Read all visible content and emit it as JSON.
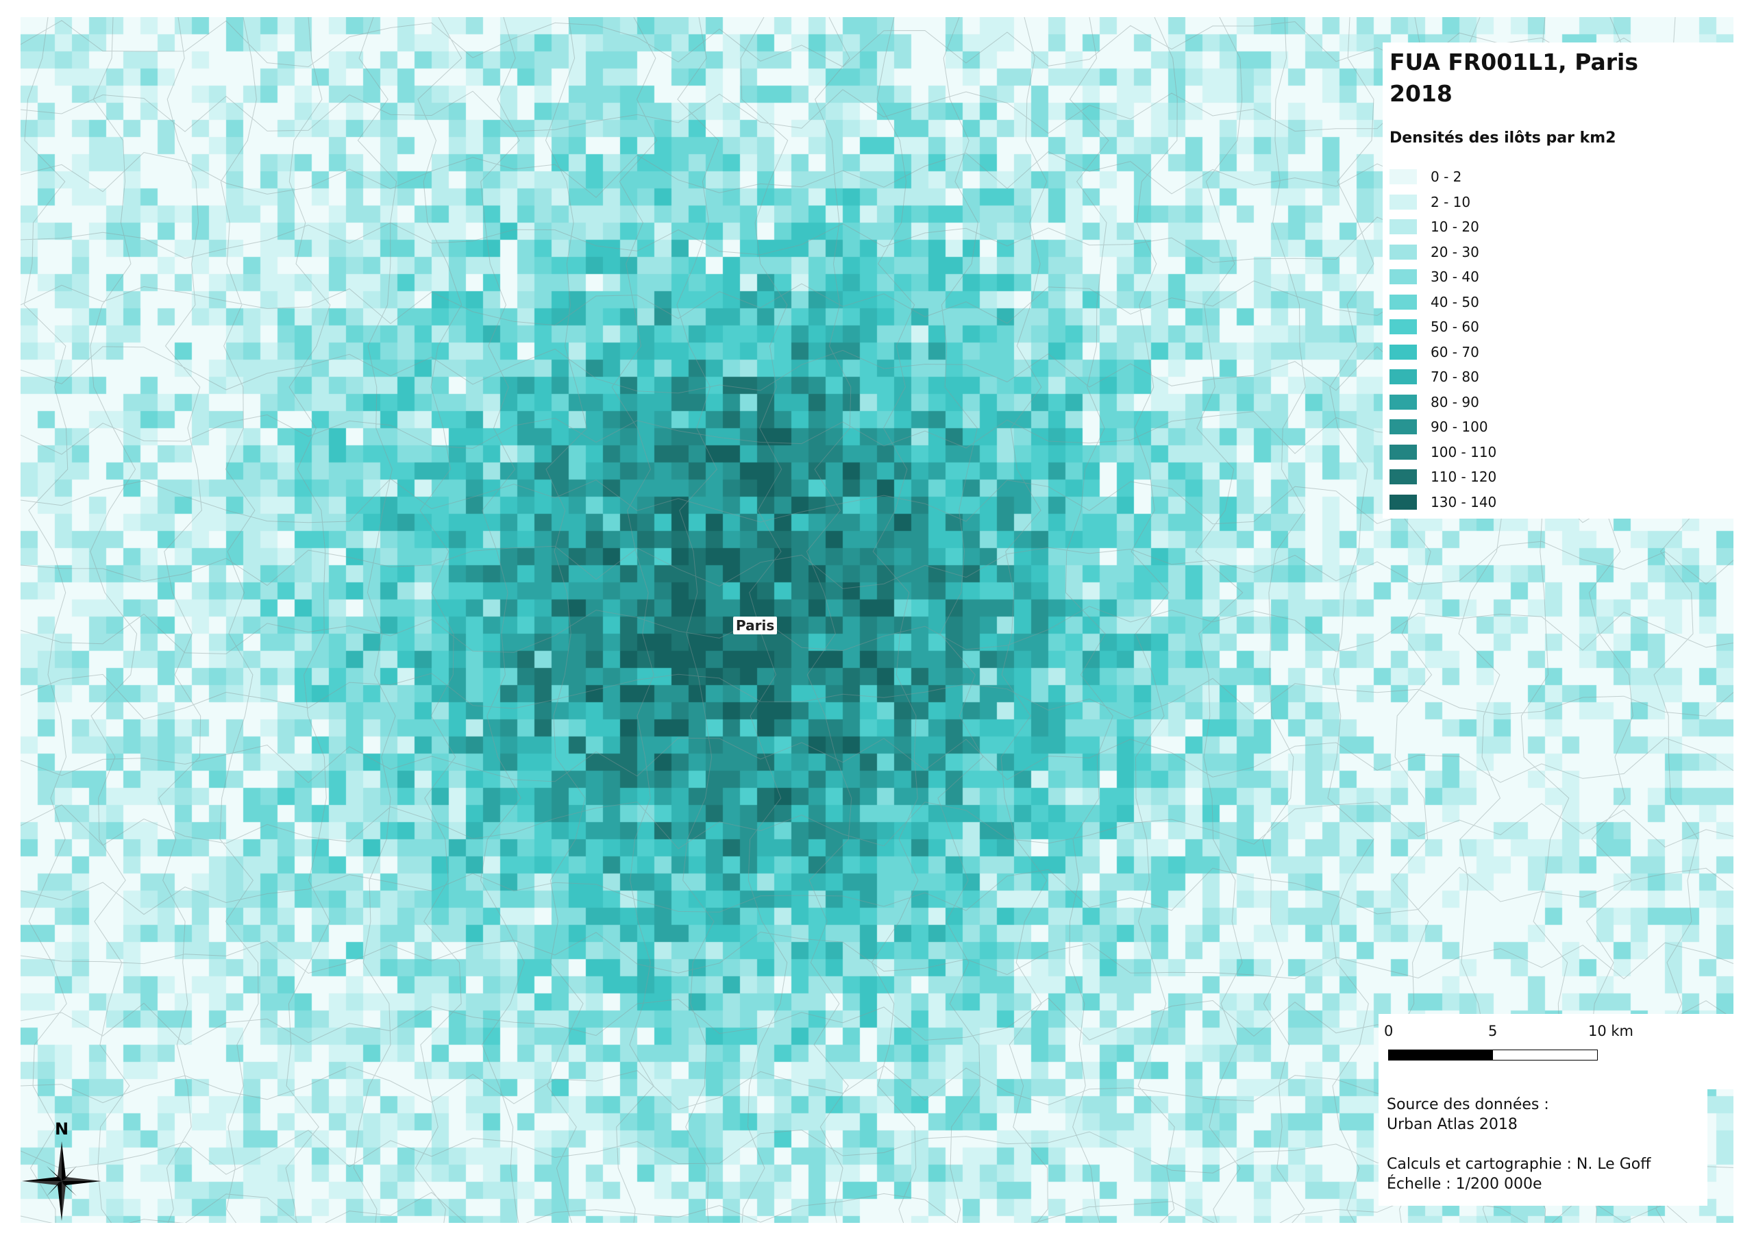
{
  "map": {
    "title_line1": "FUA FR001L1, Paris",
    "title_line2": "2018",
    "city_label": "Paris",
    "background_color": "#effbfb",
    "boundary_color": "#8a9a9a"
  },
  "legend": {
    "title": "Densités des ilôts par km2",
    "classes": [
      {
        "label": "0 - 2",
        "color": "#e8f9f9"
      },
      {
        "label": "2 - 10",
        "color": "#d2f4f4"
      },
      {
        "label": "10 - 20",
        "color": "#b9eded"
      },
      {
        "label": "20 - 30",
        "color": "#9fe5e5"
      },
      {
        "label": "30 - 40",
        "color": "#84dede"
      },
      {
        "label": "40 - 50",
        "color": "#6ad7d6"
      },
      {
        "label": "50 - 60",
        "color": "#4fcfce"
      },
      {
        "label": "60 - 70",
        "color": "#3cc4c3"
      },
      {
        "label": "70 - 80",
        "color": "#33b5b4"
      },
      {
        "label": "80 - 90",
        "color": "#2ca4a3"
      },
      {
        "label": "90 - 100",
        "color": "#279492"
      },
      {
        "label": "100 - 110",
        "color": "#228482"
      },
      {
        "label": "110 - 120",
        "color": "#1d7471"
      },
      {
        "label": "130 - 140",
        "color": "#156260"
      }
    ]
  },
  "scale": {
    "tick_0": "0",
    "tick_5": "5",
    "tick_10": "10 km"
  },
  "credits": {
    "source_label": "Source des données :",
    "source_value": "Urban Atlas 2018",
    "author": "Calculs et cartographie : N. Le Goff",
    "scale_text": "Échelle : 1/200 000e"
  },
  "north": {
    "label": "N"
  }
}
